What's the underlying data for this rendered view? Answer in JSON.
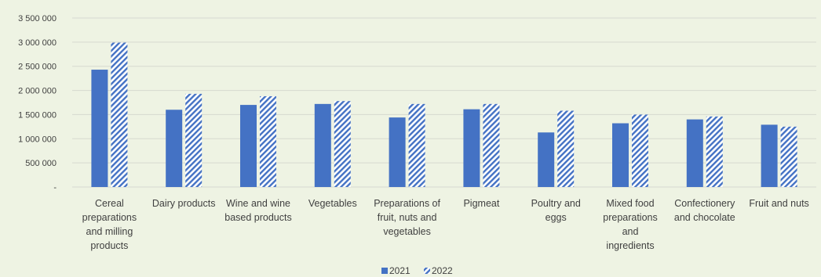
{
  "chart_data": {
    "type": "bar",
    "title": "",
    "xlabel": "",
    "ylabel": "",
    "ylim": [
      0,
      3500000
    ],
    "y_ticks": [
      "-",
      "500 000",
      "1 000 000",
      "1 500 000",
      "2 000 000",
      "2 500 000",
      "3 000 000",
      "3 500 000"
    ],
    "categories": [
      [
        "Cereal",
        "preparations",
        "and milling",
        "products"
      ],
      [
        "Dairy products"
      ],
      [
        "Wine and wine",
        "based products"
      ],
      [
        "Vegetables"
      ],
      [
        "Preparations of",
        "fruit, nuts and",
        "vegetables"
      ],
      [
        "Pigmeat"
      ],
      [
        "Poultry and",
        "eggs"
      ],
      [
        "Mixed food",
        "preparations",
        "and",
        "ingredients"
      ],
      [
        "Confectionery",
        "and chocolate"
      ],
      [
        "Fruit and nuts"
      ]
    ],
    "series": [
      {
        "name": "2021",
        "color": "#4472c4",
        "pattern": "solid",
        "values": [
          2430000,
          1600000,
          1700000,
          1720000,
          1440000,
          1610000,
          1130000,
          1320000,
          1400000,
          1290000
        ]
      },
      {
        "name": "2022",
        "color": "#4472c4",
        "pattern": "diagonal-hatch",
        "values": [
          2990000,
          1930000,
          1880000,
          1780000,
          1720000,
          1720000,
          1580000,
          1500000,
          1460000,
          1250000
        ]
      }
    ],
    "grid": true,
    "legend_position": "bottom-center"
  }
}
